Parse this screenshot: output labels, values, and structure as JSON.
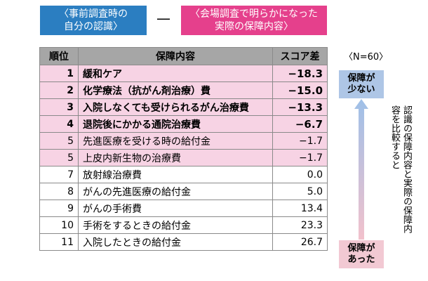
{
  "header": {
    "left_line1": "〈事前調査時の",
    "left_line2": "自分の認識〉",
    "dash": "—",
    "right_line1": "〈会場調査で明らかになった",
    "right_line2": "実際の保障内容〉"
  },
  "table": {
    "headers": {
      "rank": "順位",
      "item": "保障内容",
      "score": "スコア差"
    },
    "rows": [
      {
        "rank": "1",
        "item": "緩和ケア",
        "score": "−18.3",
        "highlight": true,
        "bold": true
      },
      {
        "rank": "2",
        "item": "化学療法（抗がん剤治療）費",
        "score": "−15.0",
        "highlight": true,
        "bold": true
      },
      {
        "rank": "3",
        "item": "入院しなくても受けられるがん治療費",
        "score": "−13.3",
        "highlight": true,
        "bold": true
      },
      {
        "rank": "4",
        "item": "退院後にかかる通院治療費",
        "score": "−6.7",
        "highlight": true,
        "bold": true
      },
      {
        "rank": "5",
        "item": "先進医療を受ける時の給付金",
        "score": "−1.7",
        "highlight": true,
        "bold": false
      },
      {
        "rank": "5",
        "item": "上皮内新生物の治療費",
        "score": "−1.7",
        "highlight": true,
        "bold": false
      },
      {
        "rank": "7",
        "item": "放射線治療費",
        "score": "0.0",
        "highlight": false,
        "bold": false
      },
      {
        "rank": "8",
        "item": "がんの先進医療の給付金",
        "score": "5.0",
        "highlight": false,
        "bold": false
      },
      {
        "rank": "9",
        "item": "がんの手術費",
        "score": "13.4",
        "highlight": false,
        "bold": false
      },
      {
        "rank": "10",
        "item": "手術をするときの給付金",
        "score": "23.3",
        "highlight": false,
        "bold": false
      },
      {
        "rank": "11",
        "item": "入院したときの給付金",
        "score": "26.7",
        "highlight": false,
        "bold": false
      }
    ]
  },
  "side": {
    "n_label": "〈N=60〉",
    "top_line1": "保障が",
    "top_line2": "少ない",
    "bottom_line1": "保障が",
    "bottom_line2": "あった",
    "note": "認識の保障内容と実際の保障内容を比較すると"
  },
  "colors": {
    "header_left": "#2b7ec1",
    "header_right": "#e5408c",
    "table_header": "#a6a6a6",
    "highlight_row": "#f7d3e4",
    "arrow_top": "#9ec0e8",
    "arrow_bottom": "#f2c1cc"
  }
}
